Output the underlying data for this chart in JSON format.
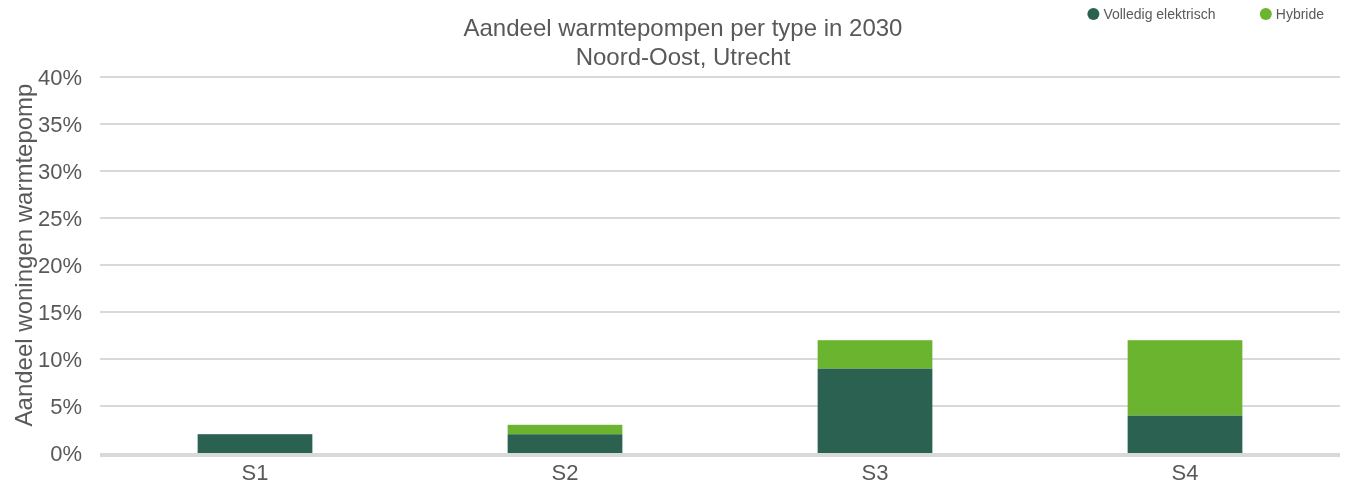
{
  "chart_data": {
    "type": "bar",
    "title": "Aandeel warmtepompen per type in 2030",
    "subtitle": "Noord-Oost, Utrecht",
    "ylabel": "Aandeel woningen warmtepomp",
    "categories": [
      "S1",
      "S2",
      "S3",
      "S4"
    ],
    "stacked": true,
    "series": [
      {
        "name": "Volledig elektrisch",
        "color": "#2a6150",
        "values": [
          2,
          2,
          9,
          4
        ]
      },
      {
        "name": "Hybride",
        "color": "#6ab42f",
        "values": [
          0,
          1,
          3,
          8
        ]
      }
    ],
    "ylim": [
      0,
      40
    ],
    "yticks": [
      {
        "value": 0,
        "label": "0%"
      },
      {
        "value": 5,
        "label": "5%"
      },
      {
        "value": 10,
        "label": "10%"
      },
      {
        "value": 15,
        "label": "15%"
      },
      {
        "value": 20,
        "label": "20%"
      },
      {
        "value": 25,
        "label": "25%"
      },
      {
        "value": 30,
        "label": "30%"
      },
      {
        "value": 35,
        "label": "35%"
      },
      {
        "value": 40,
        "label": "40%"
      }
    ],
    "grid": "y",
    "legend": "top right"
  }
}
